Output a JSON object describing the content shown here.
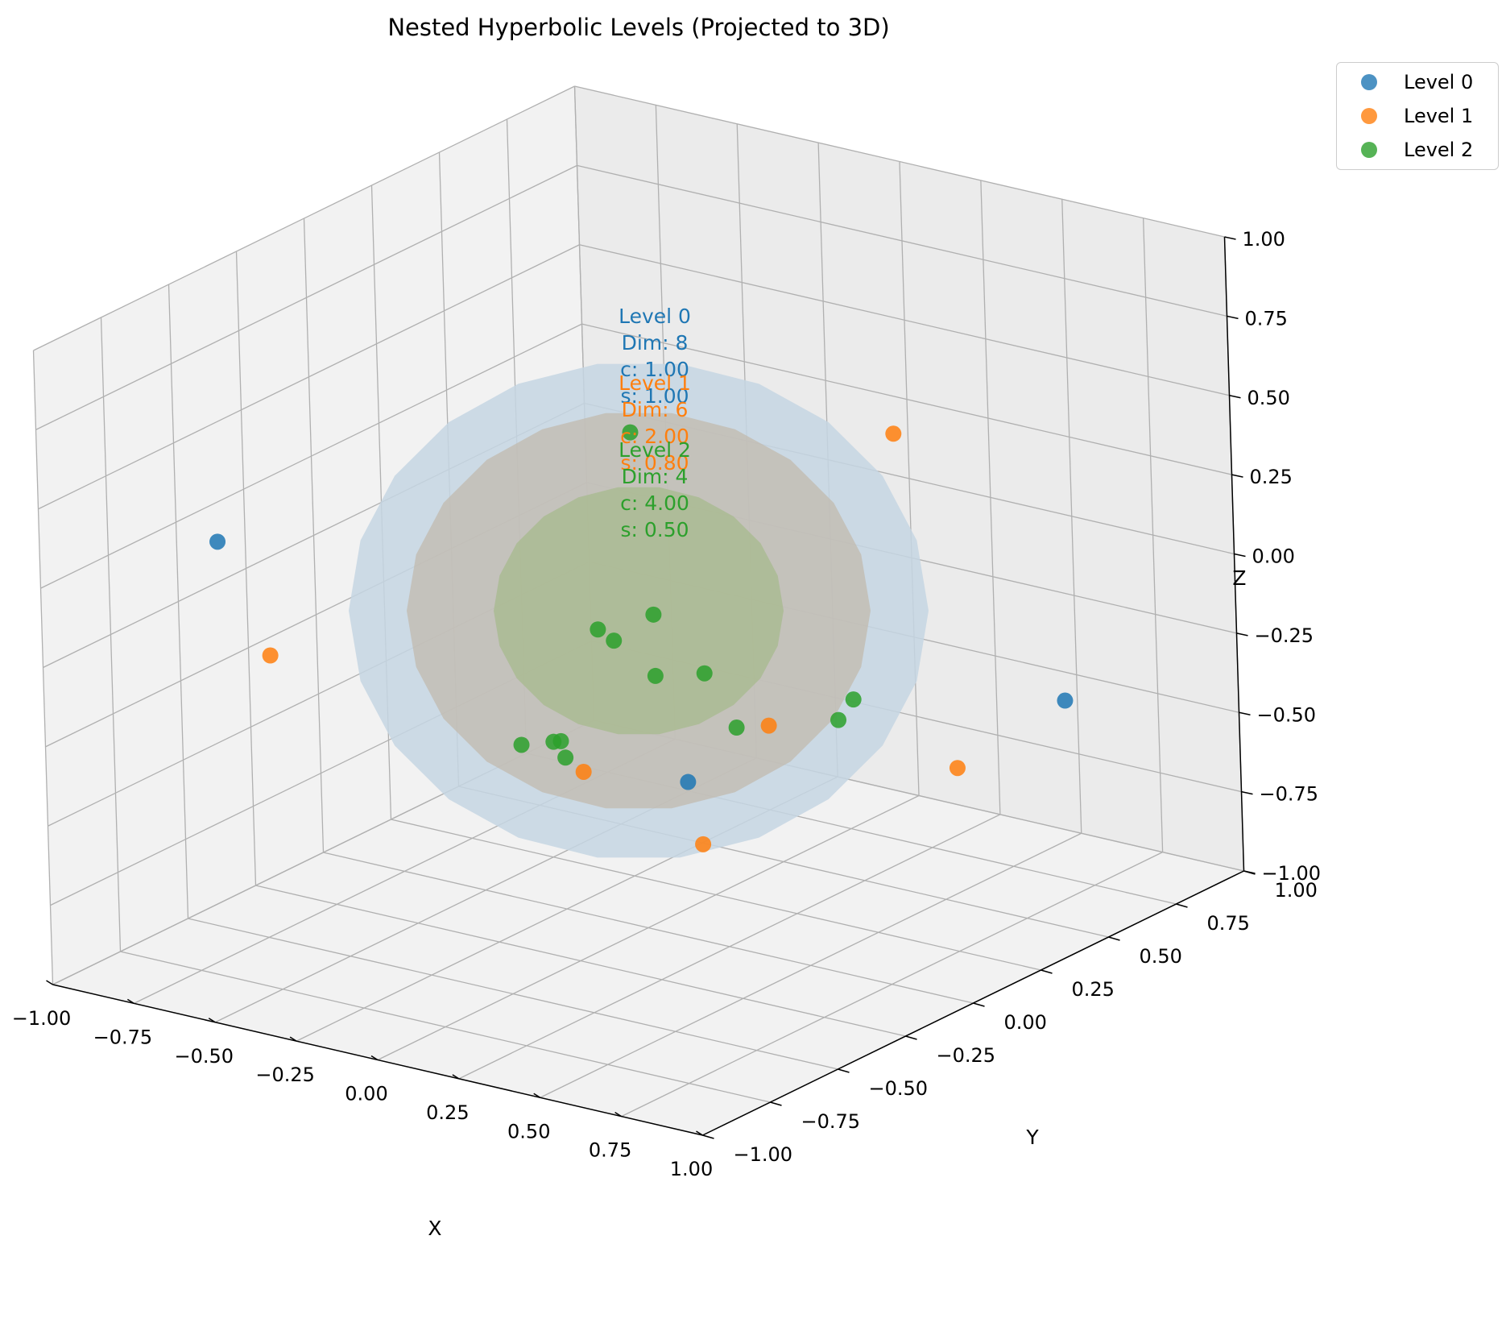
{
  "chart_data": {
    "type": "scatter3d",
    "title": "Nested Hyperbolic Levels (Projected to 3D)",
    "xlabel": "X",
    "ylabel": "Y",
    "zlabel": "Z",
    "xlim": [
      -1,
      1
    ],
    "ylim": [
      -1,
      1
    ],
    "zlim": [
      -1,
      1
    ],
    "x_ticks": [
      "−1.00",
      "−0.75",
      "−0.50",
      "−0.25",
      "0.00",
      "0.25",
      "0.50",
      "0.75",
      "1.00"
    ],
    "y_ticks": [
      "−1.00",
      "−0.75",
      "−0.50",
      "−0.25",
      "0.00",
      "0.25",
      "0.50",
      "0.75",
      "1.00"
    ],
    "z_ticks": [
      "−1.00",
      "−0.75",
      "−0.50",
      "−0.25",
      "0.00",
      "0.25",
      "0.50",
      "0.75",
      "1.00"
    ],
    "grid": true,
    "legend_position": "top-right, outside plot",
    "spheres": [
      {
        "level": 0,
        "radius": 1.0,
        "color": "#1f77b4"
      },
      {
        "level": 1,
        "radius": 0.8,
        "color": "#ff7f0e"
      },
      {
        "level": 2,
        "radius": 0.5,
        "color": "#2ca02c"
      }
    ],
    "series": [
      {
        "name": "Level 0",
        "color": "#1f77b4",
        "points": [
          [
            -0.72,
            -0.68,
            0.33
          ],
          [
            0.93,
            0.45,
            -0.25
          ],
          [
            0.12,
            0.02,
            -0.52
          ]
        ]
      },
      {
        "name": "Level 1",
        "color": "#ff7f0e",
        "points": [
          [
            -0.55,
            -0.7,
            0.02
          ],
          [
            0.27,
            0.63,
            0.36
          ],
          [
            0.35,
            0.05,
            -0.3
          ],
          [
            0.28,
            -0.12,
            -0.62
          ],
          [
            0.65,
            0.38,
            -0.5
          ],
          [
            0.01,
            -0.23,
            -0.41
          ]
        ]
      },
      {
        "name": "Level 2",
        "color": "#2ca02c",
        "points": [
          [
            -0.12,
            0.13,
            0.48
          ],
          [
            -0.06,
            -0.08,
            -0.04
          ],
          [
            0.02,
            0.03,
            -0.02
          ],
          [
            0.13,
            0.08,
            -0.2
          ],
          [
            0.08,
            -0.04,
            -0.17
          ],
          [
            0.25,
            0.05,
            -0.33
          ],
          [
            -0.14,
            -0.16,
            -0.38
          ],
          [
            -0.1,
            -0.18,
            -0.36
          ],
          [
            -0.18,
            -0.23,
            -0.37
          ],
          [
            0.47,
            0.22,
            -0.26
          ],
          [
            0.43,
            0.21,
            -0.33
          ],
          [
            -0.02,
            -0.07,
            -0.07
          ],
          [
            -0.13,
            -0.13,
            -0.44
          ]
        ]
      }
    ],
    "annotations": [
      {
        "level": 0,
        "color": "#1f77b4",
        "lines": [
          "Level 0",
          "Dim: 8",
          "c: 1.00",
          "s: 1.00"
        ]
      },
      {
        "level": 1,
        "color": "#ff7f0e",
        "lines": [
          "Level 1",
          "Dim: 6",
          "c: 2.00",
          "s: 0.80"
        ]
      },
      {
        "level": 2,
        "color": "#2ca02c",
        "lines": [
          "Level 2",
          "Dim: 4",
          "c: 4.00",
          "s: 0.50"
        ]
      }
    ]
  }
}
